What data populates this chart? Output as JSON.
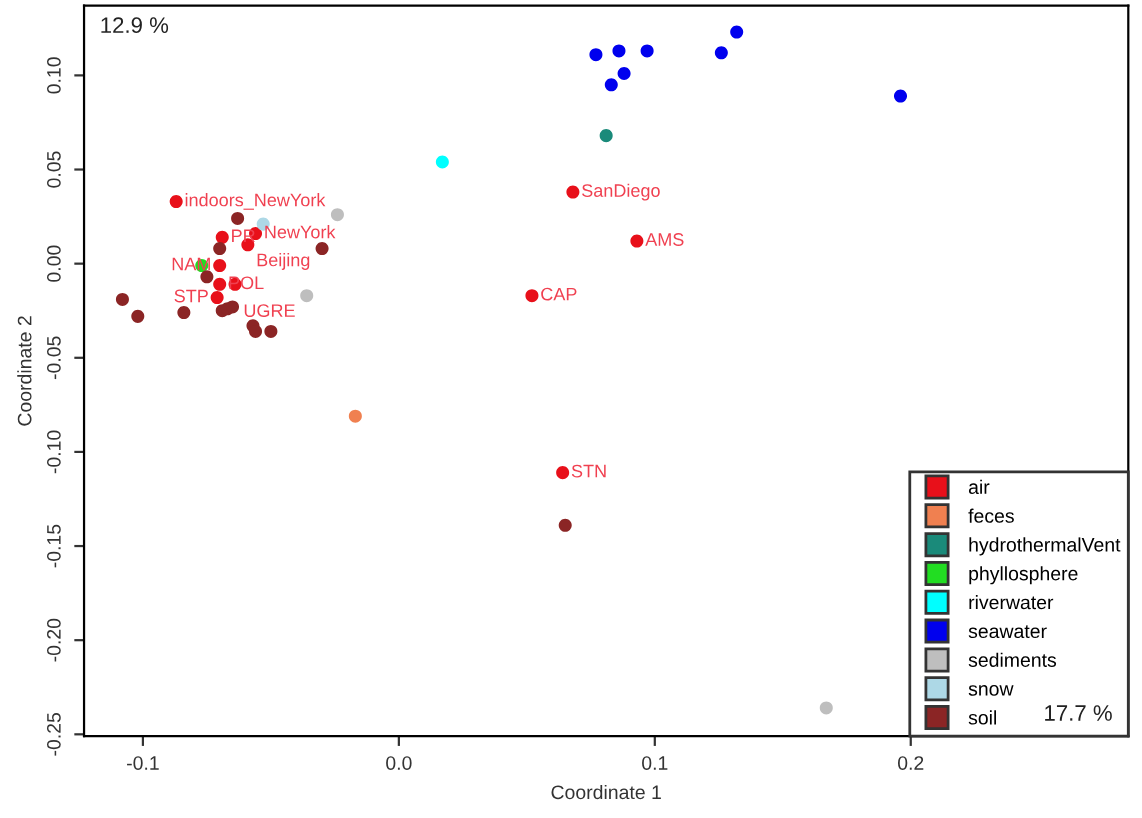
{
  "chart_data": {
    "type": "scatter",
    "xlabel": "Coordinate 1",
    "ylabel": "Coordinate 2",
    "xlim": [
      -0.123,
      0.285
    ],
    "ylim": [
      -0.251,
      0.137
    ],
    "xticks": [
      -0.1,
      {
        "value": 0.0,
        "label": "0.0"
      },
      0.1,
      0.2
    ],
    "yticks": [
      {
        "value": -0.25,
        "label": "-0.25"
      },
      {
        "value": -0.2,
        "label": "-0.20"
      },
      {
        "value": -0.15,
        "label": "-0.15"
      },
      {
        "value": -0.1,
        "label": "-0.10"
      },
      {
        "value": -0.05,
        "label": "-0.05"
      },
      {
        "value": 0.0,
        "label": "0.00"
      },
      {
        "value": 0.05,
        "label": "0.05"
      },
      {
        "value": 0.1,
        "label": "0.10"
      }
    ],
    "grid": false,
    "legend": "bottom right",
    "marker": "circle",
    "series": [
      {
        "name": "air",
        "color": "#e8101a",
        "x": [
          -0.087,
          -0.069,
          -0.056,
          -0.059,
          -0.07,
          -0.07,
          -0.064,
          -0.071,
          0.068,
          0.093,
          0.052,
          0.064
        ],
        "values": [
          0.033,
          0.014,
          0.016,
          0.01,
          -0.001,
          -0.011,
          -0.011,
          -0.018,
          0.038,
          0.012,
          -0.017,
          -0.111
        ]
      },
      {
        "name": "feces",
        "color": "#f08050",
        "x": [
          -0.017
        ],
        "values": [
          -0.081
        ]
      },
      {
        "name": "hydrothermalVent",
        "color": "#1a8a7a",
        "x": [
          0.081
        ],
        "values": [
          0.068
        ]
      },
      {
        "name": "phyllosphere",
        "color": "#22dd22",
        "x": [
          -0.077
        ],
        "values": [
          -0.001
        ]
      },
      {
        "name": "riverwater",
        "color": "#00ffff",
        "x": [
          0.017
        ],
        "values": [
          0.054
        ]
      },
      {
        "name": "seawater",
        "color": "#0000ee",
        "x": [
          0.077,
          0.086,
          0.097,
          0.126,
          0.132,
          0.088,
          0.083,
          0.196
        ],
        "values": [
          0.111,
          0.113,
          0.113,
          0.112,
          0.123,
          0.101,
          0.095,
          0.089
        ]
      },
      {
        "name": "sediments",
        "color": "#bebebe",
        "x": [
          -0.024,
          -0.036,
          0.167
        ],
        "values": [
          0.026,
          -0.017,
          -0.236
        ]
      },
      {
        "name": "snow",
        "color": "#add8e6",
        "x": [
          -0.053
        ],
        "values": [
          0.021
        ]
      },
      {
        "name": "soil",
        "color": "#8b2525",
        "x": [
          -0.063,
          -0.03,
          -0.07,
          -0.075,
          -0.108,
          -0.102,
          -0.084,
          -0.069,
          -0.067,
          -0.065,
          -0.057,
          -0.056,
          -0.05,
          0.065
        ],
        "values": [
          0.024,
          0.008,
          0.008,
          -0.007,
          -0.019,
          -0.028,
          -0.026,
          -0.025,
          -0.024,
          -0.023,
          -0.033,
          -0.036,
          -0.036,
          -0.139
        ]
      }
    ],
    "annotations": [
      {
        "text": "indoors_NewYork",
        "x": -0.087,
        "y": 0.033
      },
      {
        "text": "PR",
        "x": -0.069,
        "y": 0.014
      },
      {
        "text": "NewYork",
        "x": -0.056,
        "y": 0.016
      },
      {
        "text": "Beijing",
        "x": -0.059,
        "y": 0.01
      },
      {
        "text": "NAM",
        "x": -0.07,
        "y": -0.001
      },
      {
        "text": "POL",
        "x": -0.07,
        "y": -0.011
      },
      {
        "text": "UGRE",
        "x": -0.064,
        "y": -0.011
      },
      {
        "text": "STP",
        "x": -0.071,
        "y": -0.018
      },
      {
        "text": "SanDiego",
        "x": 0.068,
        "y": 0.038
      },
      {
        "text": "AMS",
        "x": 0.093,
        "y": 0.012
      },
      {
        "text": "CAP",
        "x": 0.052,
        "y": -0.017
      },
      {
        "text": "STN",
        "x": 0.064,
        "y": -0.111
      },
      "12.9 %",
      "17.7 %"
    ]
  }
}
